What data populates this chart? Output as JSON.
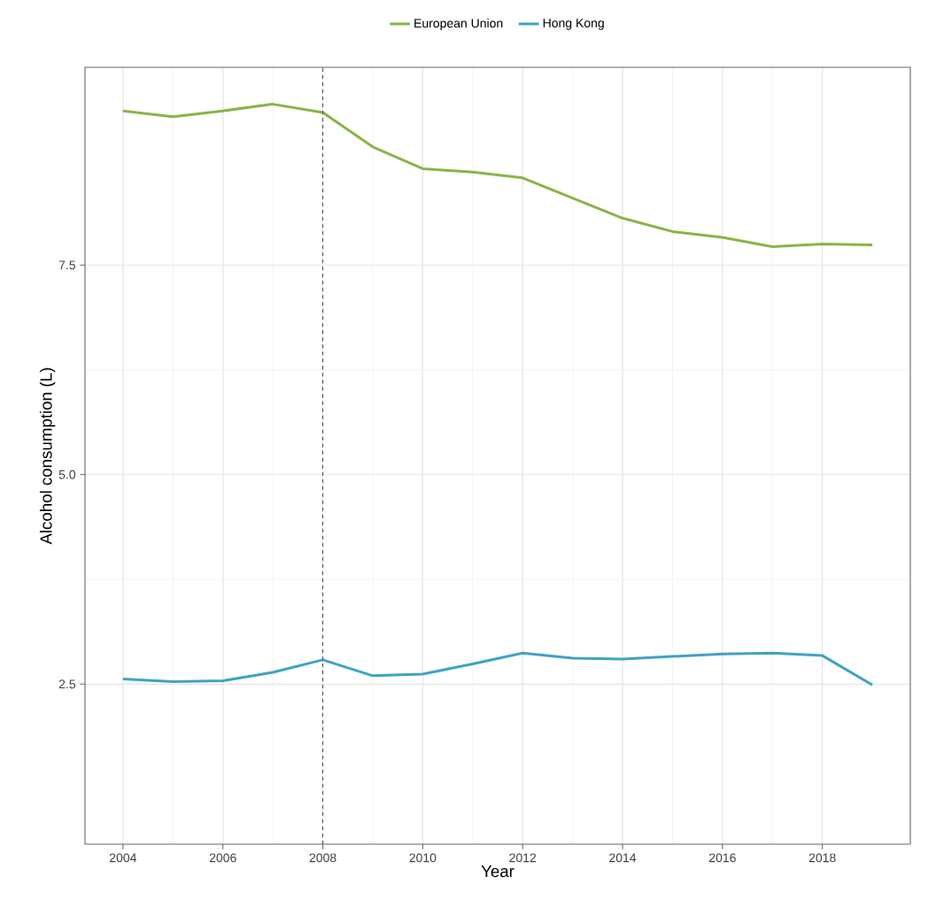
{
  "chart_data": {
    "type": "line",
    "xlabel": "Year",
    "ylabel": "Alcohol consumption (L)",
    "x": [
      2004,
      2005,
      2006,
      2007,
      2008,
      2009,
      2010,
      2011,
      2012,
      2013,
      2014,
      2015,
      2016,
      2017,
      2018,
      2019
    ],
    "series": [
      {
        "name": "European Union",
        "color": "#8ab446",
        "values": [
          9.34,
          9.27,
          9.34,
          9.42,
          9.32,
          8.91,
          8.65,
          8.61,
          8.54,
          8.3,
          8.06,
          7.9,
          7.83,
          7.72,
          7.75,
          7.74
        ]
      },
      {
        "name": "Hong Kong",
        "color": "#3fa3c4",
        "values": [
          2.56,
          2.53,
          2.54,
          2.64,
          2.79,
          2.6,
          2.62,
          2.74,
          2.87,
          2.81,
          2.8,
          2.83,
          2.86,
          2.87,
          2.84,
          2.49
        ]
      }
    ],
    "xlim": [
      2003.24,
      2019.76
    ],
    "ylim": [
      0.59,
      9.86
    ],
    "xticks": [
      2004,
      2006,
      2008,
      2010,
      2012,
      2014,
      2016,
      2018
    ],
    "yticks": [
      {
        "value": 2.5,
        "label": "2.5"
      },
      {
        "value": 5,
        "label": "5.0"
      },
      {
        "value": 7.5,
        "label": "7.5"
      }
    ],
    "ref_lines": [
      {
        "axis": "x",
        "value": 2008,
        "color": "#555555",
        "line_style": "dashed"
      }
    ],
    "grid": true,
    "legend": "top",
    "marker": "none",
    "line_style": "solid"
  }
}
